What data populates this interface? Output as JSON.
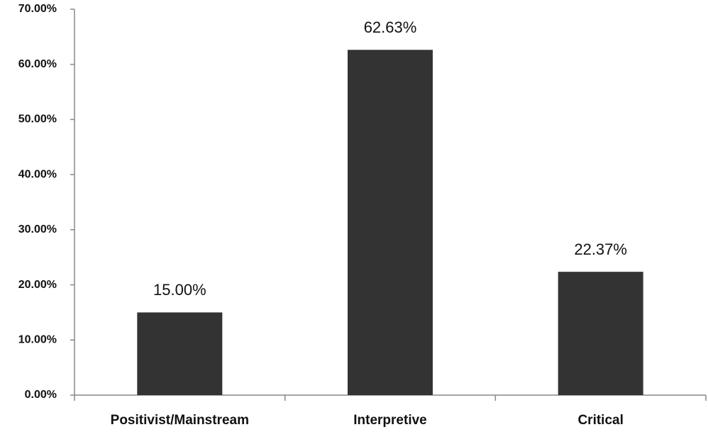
{
  "chart_data": {
    "type": "bar",
    "categories": [
      "Positivist/Mainstream",
      "Interpretive",
      "Critical"
    ],
    "values": [
      15.0,
      62.63,
      22.37
    ],
    "value_labels": [
      "15.00%",
      "62.63%",
      "22.37%"
    ],
    "color": "#333333",
    "ylim": [
      0,
      70
    ],
    "yticks": [
      {
        "value": 0,
        "label": "0.00%"
      },
      {
        "value": 10,
        "label": "10.00%"
      },
      {
        "value": 20,
        "label": "20.00%"
      },
      {
        "value": 30,
        "label": "30.00%"
      },
      {
        "value": 40,
        "label": "40.00%"
      },
      {
        "value": 50,
        "label": "50.00%"
      },
      {
        "value": 60,
        "label": "60.00%"
      },
      {
        "value": 70,
        "label": "70.00%"
      }
    ],
    "grid": false
  }
}
